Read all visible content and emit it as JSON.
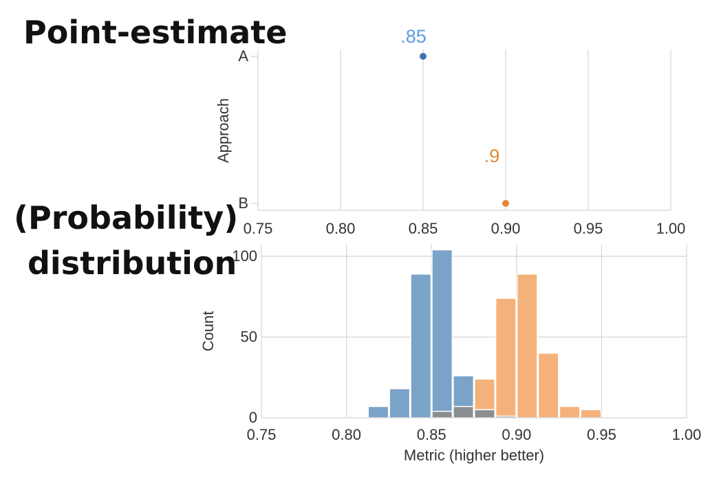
{
  "headings": {
    "top": "Point-estimate",
    "bottom_line1": "(Probability)",
    "bottom_line2": "distribution"
  },
  "colors": {
    "A": "#3a75b0",
    "A_label": "#5b9ce6",
    "B": "#ea8533",
    "B_label": "#e08a3c",
    "hist_A": "#7aa3c8",
    "hist_B": "#f4b27a",
    "overlap": "#8b8e91",
    "grid": "#d4d4d4"
  },
  "chart_data": [
    {
      "type": "scatter",
      "ylabel": "Approach",
      "xlim": [
        0.75,
        1.0
      ],
      "xticks": [
        "0.75",
        "0.80",
        "0.85",
        "0.90",
        "0.95",
        "1.00"
      ],
      "categories": [
        "A",
        "B"
      ],
      "points": [
        {
          "category": "A",
          "x": 0.85,
          "label": ".85"
        },
        {
          "category": "B",
          "x": 0.9,
          "label": ".9"
        }
      ],
      "grid": true
    },
    {
      "type": "histogram",
      "xlabel": "Metric (higher better)",
      "ylabel": "Count",
      "xlim": [
        0.75,
        1.0
      ],
      "ylim": [
        0,
        100
      ],
      "xticks": [
        "0.75",
        "0.80",
        "0.85",
        "0.90",
        "0.95",
        "1.00"
      ],
      "yticks": [
        "0",
        "50",
        "100"
      ],
      "bin_width": 0.0125,
      "grid": true,
      "series": [
        {
          "category": "A",
          "bins": [
            {
              "x0": 0.8125,
              "count": 7
            },
            {
              "x0": 0.825,
              "count": 18
            },
            {
              "x0": 0.8375,
              "count": 89
            },
            {
              "x0": 0.85,
              "count": 104
            },
            {
              "x0": 0.8625,
              "count": 26
            },
            {
              "x0": 0.875,
              "count": 5
            },
            {
              "x0": 0.8875,
              "count": 1
            }
          ]
        },
        {
          "category": "B",
          "bins": [
            {
              "x0": 0.85,
              "count": 4
            },
            {
              "x0": 0.8625,
              "count": 7
            },
            {
              "x0": 0.875,
              "count": 24
            },
            {
              "x0": 0.8875,
              "count": 74
            },
            {
              "x0": 0.9,
              "count": 89
            },
            {
              "x0": 0.9125,
              "count": 40
            },
            {
              "x0": 0.925,
              "count": 7
            },
            {
              "x0": 0.9375,
              "count": 5
            }
          ]
        }
      ]
    }
  ]
}
